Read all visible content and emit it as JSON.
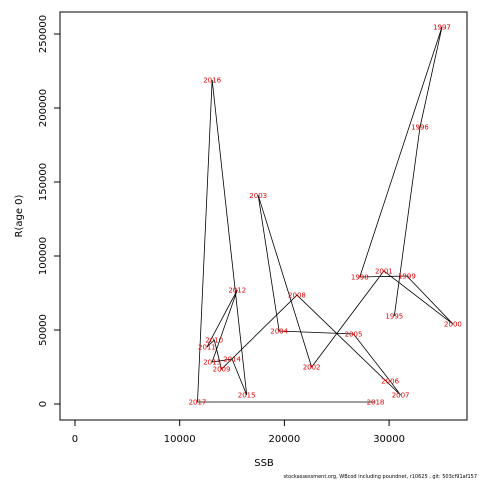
{
  "chart_data": {
    "type": "line",
    "xlabel": "SSB",
    "ylabel": "R(age 0)",
    "footnote": "stockassessment.org, WBcod including poundnet, r10625 , git: 503cf91af157",
    "labels": [
      "1995",
      "1996",
      "1997",
      "1998",
      "1999",
      "2000",
      "2001",
      "2002",
      "2003",
      "2004",
      "2005",
      "2006",
      "2007",
      "2008",
      "2009",
      "2010",
      "2011",
      "2012",
      "2013",
      "2014",
      "2015",
      "2016",
      "2017",
      "2018"
    ],
    "x": [
      30500,
      32950,
      35050,
      27200,
      31700,
      36100,
      29500,
      22600,
      17500,
      19500,
      26600,
      30100,
      31100,
      21200,
      14000,
      13300,
      12600,
      15500,
      13100,
      15000,
      16400,
      13100,
      11700,
      28700
    ],
    "series": [
      {
        "color": "#000000",
        "label_color": "#e00000",
        "values": [
          59500,
          187000,
          254700,
          85800,
          86500,
          54000,
          89900,
          25000,
          141000,
          49300,
          47300,
          15500,
          6000,
          73600,
          23600,
          43200,
          38500,
          77000,
          28400,
          30400,
          6100,
          219000,
          1350,
          1350
        ]
      }
    ],
    "xlim": [
      -1430,
      37440
    ],
    "ylim": [
      -10810,
      264860
    ],
    "xticks": [
      0,
      10000,
      20000,
      30000
    ],
    "yticks": [
      0,
      50000,
      100000,
      150000,
      200000,
      250000
    ]
  }
}
